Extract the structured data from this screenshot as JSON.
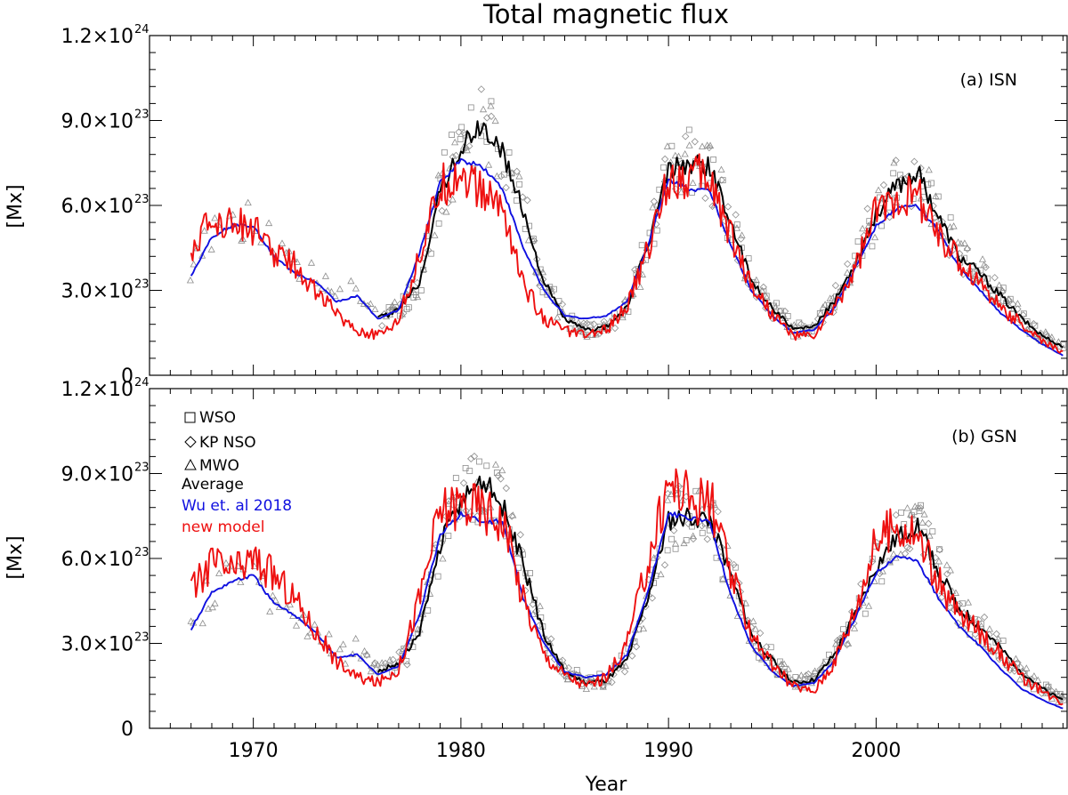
{
  "figure": {
    "title": "Total magnetic flux",
    "xlabel": "Year"
  },
  "legend": {
    "wso": "WSO",
    "kp": "KP NSO",
    "mwo": "MWO",
    "average": "Average",
    "wu": "Wu et. al 2018",
    "model": "new model"
  },
  "colors": {
    "average": "#000000",
    "wu": "#1010e0",
    "model": "#ee1010",
    "observations": "#8c8c8c"
  },
  "chart_data": [
    {
      "type": "line",
      "title": "Total magnetic flux",
      "panel_label": "(a) ISN",
      "xlabel": "Year",
      "ylabel": "[Mx]",
      "xlim": [
        1965,
        2009.2
      ],
      "ylim": [
        0,
        1.2e+24
      ],
      "xticks": [
        {
          "value": 1970,
          "label": "1970"
        },
        {
          "value": 1980,
          "label": "1980"
        },
        {
          "value": 1990,
          "label": "1990"
        },
        {
          "value": 2000,
          "label": "2000"
        }
      ],
      "yticks": [
        {
          "value": 0,
          "mant": "0",
          "exp": ""
        },
        {
          "value": 3e+23,
          "mant": "3.0×10",
          "exp": "23"
        },
        {
          "value": 6e+23,
          "mant": "6.0×10",
          "exp": "23"
        },
        {
          "value": 9e+23,
          "mant": "9.0×10",
          "exp": "23"
        },
        {
          "value": 1.2e+24,
          "mant": "1.2×10",
          "exp": "24"
        }
      ],
      "series": [
        {
          "name": "Average",
          "key": "average",
          "x": [
            1976,
            1977,
            1978,
            1979,
            1980,
            1981,
            1982,
            1983,
            1984,
            1985,
            1986,
            1987,
            1988,
            1989,
            1990,
            1991,
            1992,
            1993,
            1994,
            1995,
            1996,
            1997,
            1998,
            1999,
            2000,
            2001,
            2002,
            2003,
            2004,
            2005,
            2006,
            2007,
            2008,
            2009
          ],
          "values": [
            2e+23,
            2.3e+23,
            3.3e+23,
            6.5e+23,
            8e+23,
            8.8e+23,
            7.9e+23,
            5.8e+23,
            3.3e+23,
            2e+23,
            1.6e+23,
            1.7e+23,
            2.4e+23,
            4.6e+23,
            7.3e+23,
            7.5e+23,
            7.4e+23,
            5.4e+23,
            3.3e+23,
            2.4e+23,
            1.6e+23,
            1.7e+23,
            2.6e+23,
            4e+23,
            5.7e+23,
            6.7e+23,
            7.2e+23,
            5.6e+23,
            4.2e+23,
            3.6e+23,
            2.8e+23,
            2e+23,
            1.4e+23,
            1e+23
          ]
        },
        {
          "name": "Wu et. al 2018",
          "key": "wu",
          "x": [
            1967,
            1968,
            1969,
            1970,
            1971,
            1972,
            1973,
            1974,
            1975,
            1976,
            1977,
            1978,
            1979,
            1980,
            1981,
            1982,
            1983,
            1984,
            1985,
            1986,
            1987,
            1988,
            1989,
            1990,
            1991,
            1992,
            1993,
            1994,
            1995,
            1996,
            1997,
            1998,
            1999,
            2000,
            2001,
            2002,
            2003,
            2004,
            2005,
            2006,
            2007,
            2008,
            2009
          ],
          "values": [
            3.5e+23,
            4.9e+23,
            5.3e+23,
            5.3e+23,
            4.2e+23,
            3.6e+23,
            3.3e+23,
            2.6e+23,
            2.8e+23,
            2e+23,
            2.3e+23,
            4.3e+23,
            6.8e+23,
            7.6e+23,
            7.4e+23,
            6.6e+23,
            4.5e+23,
            3e+23,
            2.1e+23,
            2e+23,
            2.1e+23,
            2.6e+23,
            4.6e+23,
            6.9e+23,
            6.6e+23,
            6.5e+23,
            4.6e+23,
            3e+23,
            2.1e+23,
            1.5e+23,
            1.6e+23,
            2.4e+23,
            3.8e+23,
            5.3e+23,
            5.9e+23,
            6e+23,
            5.1e+23,
            3.8e+23,
            3e+23,
            2.2e+23,
            1.6e+23,
            1.1e+23,
            7e+22
          ]
        },
        {
          "name": "new model",
          "key": "model",
          "x": [
            1967,
            1968,
            1969,
            1970,
            1971,
            1972,
            1973,
            1974,
            1975,
            1976,
            1977,
            1978,
            1979,
            1980,
            1981,
            1982,
            1983,
            1984,
            1985,
            1986,
            1987,
            1988,
            1989,
            1990,
            1991,
            1992,
            1993,
            1994,
            1995,
            1996,
            1997,
            1998,
            1999,
            2000,
            2001,
            2002,
            2003,
            2004,
            2005,
            2006,
            2007,
            2008,
            2009
          ],
          "values": [
            4.5e+23,
            5.4e+23,
            5.5e+23,
            5.2e+23,
            4.3e+23,
            3.9e+23,
            3e+23,
            2.2e+23,
            1.6e+23,
            1.4e+23,
            2e+23,
            4.2e+23,
            6.6e+23,
            7.2e+23,
            6.4e+23,
            6e+23,
            3.2e+23,
            2e+23,
            1.6e+23,
            1.4e+23,
            1.6e+23,
            2.4e+23,
            4.4e+23,
            7e+23,
            7.1e+23,
            7e+23,
            5e+23,
            3.2e+23,
            2.2e+23,
            1.4e+23,
            1.4e+23,
            2.4e+23,
            3.8e+23,
            5.8e+23,
            6.4e+23,
            6.4e+23,
            5e+23,
            4e+23,
            3.3e+23,
            2.4e+23,
            1.8e+23,
            1.2e+23,
            8e+22
          ]
        }
      ]
    },
    {
      "type": "line",
      "panel_label": "(b) GSN",
      "xlabel": "Year",
      "ylabel": "[Mx]",
      "xlim": [
        1965,
        2009.2
      ],
      "ylim": [
        0,
        1.2e+24
      ],
      "xticks": [
        {
          "value": 1970,
          "label": "1970"
        },
        {
          "value": 1980,
          "label": "1980"
        },
        {
          "value": 1990,
          "label": "1990"
        },
        {
          "value": 2000,
          "label": "2000"
        }
      ],
      "yticks": [
        {
          "value": 0,
          "mant": "0",
          "exp": ""
        },
        {
          "value": 3e+23,
          "mant": "3.0×10",
          "exp": "23"
        },
        {
          "value": 6e+23,
          "mant": "6.0×10",
          "exp": "23"
        },
        {
          "value": 9e+23,
          "mant": "9.0×10",
          "exp": "23"
        },
        {
          "value": 1.2e+24,
          "mant": "1.2×10",
          "exp": "24"
        }
      ],
      "series": [
        {
          "name": "Average",
          "key": "average",
          "x": [
            1976,
            1977,
            1978,
            1979,
            1980,
            1981,
            1982,
            1983,
            1984,
            1985,
            1986,
            1987,
            1988,
            1989,
            1990,
            1991,
            1992,
            1993,
            1994,
            1995,
            1996,
            1997,
            1998,
            1999,
            2000,
            2001,
            2002,
            2003,
            2004,
            2005,
            2006,
            2007,
            2008,
            2009
          ],
          "values": [
            2e+23,
            2.3e+23,
            3.3e+23,
            6.5e+23,
            8e+23,
            8.8e+23,
            7.9e+23,
            5.8e+23,
            3.3e+23,
            2e+23,
            1.6e+23,
            1.7e+23,
            2.4e+23,
            4.6e+23,
            7.3e+23,
            7.5e+23,
            7.4e+23,
            5.4e+23,
            3.3e+23,
            2.4e+23,
            1.6e+23,
            1.7e+23,
            2.6e+23,
            4e+23,
            5.7e+23,
            6.7e+23,
            7.2e+23,
            5.6e+23,
            4.2e+23,
            3.6e+23,
            2.8e+23,
            2e+23,
            1.4e+23,
            1e+23
          ]
        },
        {
          "name": "Wu et. al 2018",
          "key": "wu",
          "x": [
            1967,
            1968,
            1969,
            1970,
            1971,
            1972,
            1973,
            1974,
            1975,
            1976,
            1977,
            1978,
            1979,
            1980,
            1981,
            1982,
            1983,
            1984,
            1985,
            1986,
            1987,
            1988,
            1989,
            1990,
            1991,
            1992,
            1993,
            1994,
            1995,
            1996,
            1997,
            1998,
            1999,
            2000,
            2001,
            2002,
            2003,
            2004,
            2005,
            2006,
            2007,
            2008,
            2009
          ],
          "values": [
            3.5e+23,
            4.8e+23,
            5.2e+23,
            5.4e+23,
            4.4e+23,
            4e+23,
            3.4e+23,
            2.5e+23,
            2.6e+23,
            1.9e+23,
            2.2e+23,
            4e+23,
            6.8e+23,
            7.6e+23,
            7.3e+23,
            7.3e+23,
            4.6e+23,
            3e+23,
            2e+23,
            1.8e+23,
            1.9e+23,
            2.6e+23,
            4.8e+23,
            7.6e+23,
            7.4e+23,
            7.3e+23,
            4.7e+23,
            2.9e+23,
            2e+23,
            1.5e+23,
            1.6e+23,
            2.4e+23,
            3.9e+23,
            5.5e+23,
            6.1e+23,
            5.9e+23,
            4.6e+23,
            3.6e+23,
            2.9e+23,
            2.1e+23,
            1.4e+23,
            1e+23,
            7e+22
          ]
        },
        {
          "name": "new model",
          "key": "model",
          "x": [
            1967,
            1968,
            1969,
            1970,
            1971,
            1972,
            1973,
            1974,
            1975,
            1976,
            1977,
            1978,
            1979,
            1980,
            1981,
            1982,
            1983,
            1984,
            1985,
            1986,
            1987,
            1988,
            1989,
            1990,
            1991,
            1992,
            1993,
            1994,
            1995,
            1996,
            1997,
            1998,
            1999,
            2000,
            2001,
            2002,
            2003,
            2004,
            2005,
            2006,
            2007,
            2008,
            2009
          ],
          "values": [
            4.8e+23,
            5.9e+23,
            5.5e+23,
            6e+23,
            5.4e+23,
            4.6e+23,
            3.4e+23,
            2.4e+23,
            1.8e+23,
            1.6e+23,
            2.1e+23,
            4.6e+23,
            7.7e+23,
            8e+23,
            7.8e+23,
            7.4e+23,
            4.6e+23,
            2.6e+23,
            1.9e+23,
            1.5e+23,
            1.8e+23,
            3e+23,
            5.8e+23,
            8.7e+23,
            8.2e+23,
            8.1e+23,
            5.4e+23,
            3.4e+23,
            2.2e+23,
            1.5e+23,
            1.3e+23,
            2.4e+23,
            4.2e+23,
            6.6e+23,
            7.2e+23,
            6.8e+23,
            5.2e+23,
            4e+23,
            3.4e+23,
            2.6e+23,
            1.8e+23,
            1.3e+23,
            9e+22
          ]
        }
      ]
    }
  ]
}
